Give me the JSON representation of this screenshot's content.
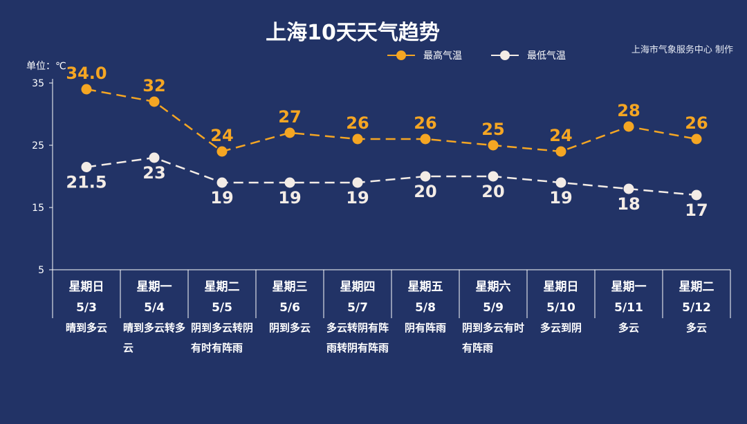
{
  "title": "上海10天天气趋势",
  "source": "上海市气象服务中心 制作",
  "unit_label": "单位：℃",
  "legend": {
    "high_label": "最高气温",
    "low_label": "最低气温"
  },
  "colors": {
    "background": "#223366",
    "high": "#f5a623",
    "low": "#f3ece6",
    "axis": "#ffffff"
  },
  "days": [
    {
      "name": "星期日",
      "date": "5/3",
      "weather": "晴到多云"
    },
    {
      "name": "星期一",
      "date": "5/4",
      "weather": "晴到多云转多云"
    },
    {
      "name": "星期二",
      "date": "5/5",
      "weather": "阴到多云转阴有时有阵雨"
    },
    {
      "name": "星期三",
      "date": "5/6",
      "weather": "阴到多云"
    },
    {
      "name": "星期四",
      "date": "5/7",
      "weather": "多云转阴有阵雨转阴有阵雨"
    },
    {
      "name": "星期五",
      "date": "5/8",
      "weather": "阴有阵雨"
    },
    {
      "name": "星期六",
      "date": "5/9",
      "weather": "阴到多云有时有阵雨"
    },
    {
      "name": "星期日",
      "date": "5/10",
      "weather": "多云到阴"
    },
    {
      "name": "星期一",
      "date": "5/11",
      "weather": "多云"
    },
    {
      "name": "星期二",
      "date": "5/12",
      "weather": "多云"
    }
  ],
  "chart_data": {
    "type": "line",
    "categories": [
      "5/3",
      "5/4",
      "5/5",
      "5/6",
      "5/7",
      "5/8",
      "5/9",
      "5/10",
      "5/11",
      "5/12"
    ],
    "series": [
      {
        "name": "最高气温",
        "values": [
          34.0,
          32,
          24,
          27,
          26,
          26,
          25,
          24,
          28,
          26
        ],
        "labels": [
          "34.0",
          "32",
          "24",
          "27",
          "26",
          "26",
          "25",
          "24",
          "28",
          "26"
        ]
      },
      {
        "name": "最低气温",
        "values": [
          21.5,
          23,
          19,
          19,
          19,
          20,
          20,
          19,
          18,
          17
        ],
        "labels": [
          "21.5",
          "23",
          "19",
          "19",
          "19",
          "20",
          "20",
          "19",
          "18",
          "17"
        ]
      }
    ],
    "yticks": [
      35,
      25,
      15,
      5
    ],
    "ylim": [
      5,
      35
    ],
    "grid": false,
    "legend_position": "top-right"
  }
}
